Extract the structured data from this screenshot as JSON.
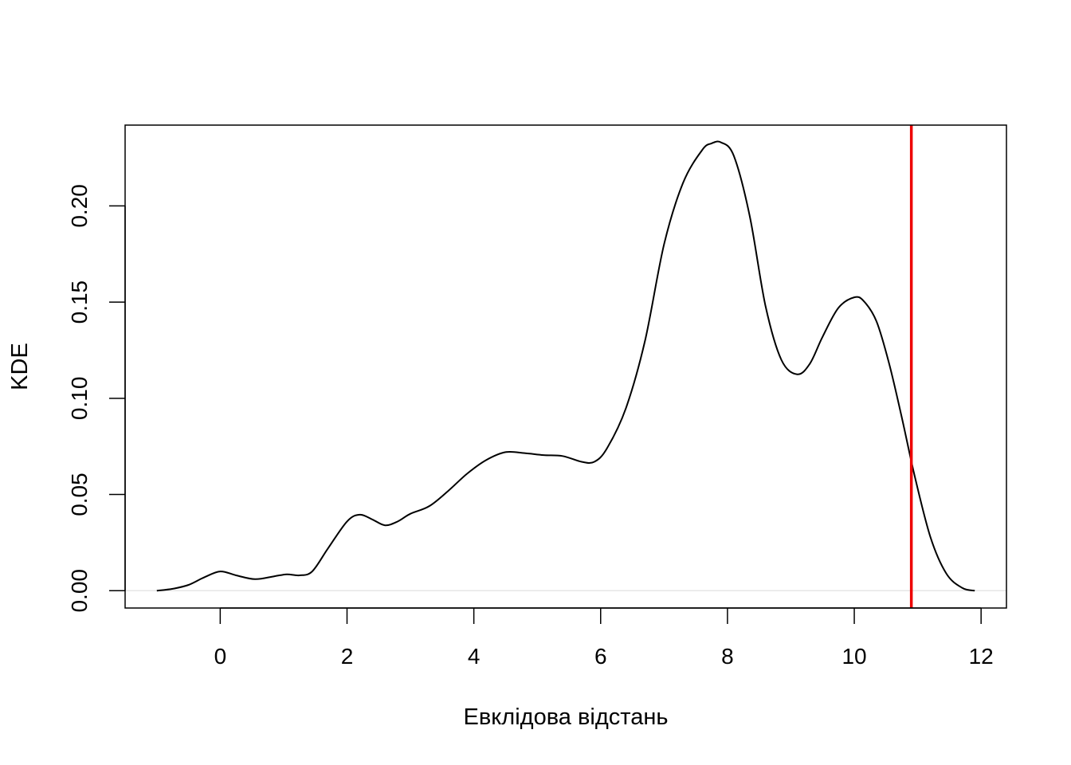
{
  "chart_data": {
    "type": "line",
    "title": "",
    "xlabel": "Евклідова відстань",
    "ylabel": "KDE",
    "xlim": [
      -1.5,
      12.4
    ],
    "ylim": [
      -0.009,
      0.242
    ],
    "x_ticks": [
      0,
      2,
      4,
      6,
      8,
      10,
      12
    ],
    "y_ticks": [
      0.0,
      0.05,
      0.1,
      0.15,
      0.2
    ],
    "x_tick_labels": [
      "0",
      "2",
      "4",
      "6",
      "8",
      "10",
      "12"
    ],
    "y_tick_labels": [
      "0.00",
      "0.05",
      "0.10",
      "0.15",
      "0.20"
    ],
    "grid": false,
    "baseline": {
      "y": 0,
      "color": "#e6e6e6"
    },
    "series": [
      {
        "color": "#000000",
        "x": [
          -1.0,
          -0.75,
          -0.5,
          -0.25,
          0.0,
          0.25,
          0.55,
          0.85,
          1.05,
          1.25,
          1.45,
          1.7,
          2.0,
          2.2,
          2.4,
          2.6,
          2.8,
          3.0,
          3.3,
          3.6,
          3.9,
          4.2,
          4.5,
          4.8,
          5.1,
          5.4,
          5.7,
          5.9,
          6.1,
          6.4,
          6.7,
          7.0,
          7.3,
          7.6,
          7.75,
          7.9,
          8.1,
          8.35,
          8.6,
          8.85,
          9.1,
          9.3,
          9.5,
          9.75,
          10.0,
          10.15,
          10.35,
          10.55,
          10.75,
          10.95,
          11.2,
          11.45,
          11.7,
          11.9
        ],
        "y": [
          0.0,
          0.001,
          0.003,
          0.007,
          0.01,
          0.008,
          0.006,
          0.0075,
          0.0085,
          0.008,
          0.01,
          0.022,
          0.036,
          0.0395,
          0.037,
          0.034,
          0.036,
          0.04,
          0.044,
          0.052,
          0.061,
          0.068,
          0.072,
          0.0715,
          0.0705,
          0.07,
          0.067,
          0.067,
          0.074,
          0.095,
          0.13,
          0.18,
          0.212,
          0.229,
          0.2325,
          0.233,
          0.226,
          0.195,
          0.148,
          0.12,
          0.1125,
          0.118,
          0.132,
          0.147,
          0.1525,
          0.1505,
          0.14,
          0.118,
          0.09,
          0.06,
          0.028,
          0.009,
          0.0015,
          0.0
        ]
      }
    ],
    "vline": {
      "x": 10.9,
      "color": "#ee0000"
    }
  }
}
